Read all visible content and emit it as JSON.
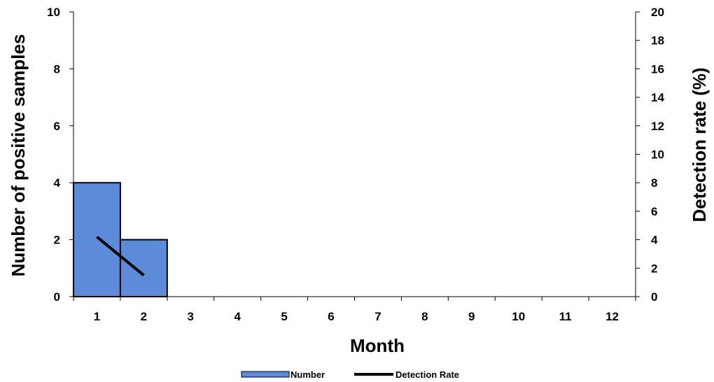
{
  "chart_data": {
    "type": "bar",
    "categories": [
      "1",
      "2",
      "3",
      "4",
      "5",
      "6",
      "7",
      "8",
      "9",
      "10",
      "11",
      "12"
    ],
    "series": [
      {
        "name": "Number",
        "type": "bar",
        "axis": "left",
        "color": "#5b8bd9",
        "values": [
          4,
          2,
          0,
          0,
          0,
          0,
          0,
          0,
          0,
          0,
          0,
          0
        ]
      },
      {
        "name": "Detection Rate",
        "type": "line",
        "axis": "right",
        "color": "#000000",
        "values": [
          4.2,
          1.5,
          null,
          null,
          null,
          null,
          null,
          null,
          null,
          null,
          null,
          null
        ]
      }
    ],
    "xlabel": "Month",
    "ylabel": "Number of positive samples",
    "y2label": "Detection rate (%)",
    "ylim": [
      0,
      10
    ],
    "y2lim": [
      0,
      20
    ],
    "yticks": [
      "0",
      "2",
      "4",
      "6",
      "8",
      "10"
    ],
    "y2ticks": [
      "0",
      "2",
      "4",
      "6",
      "8",
      "10",
      "12",
      "14",
      "16",
      "18",
      "20"
    ],
    "grid": false,
    "legend_position": "bottom"
  }
}
